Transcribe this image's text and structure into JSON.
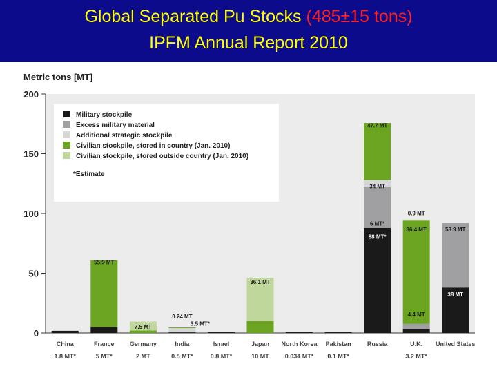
{
  "title": {
    "line1_part1": "Global Separated Pu Stocks ",
    "line1_part2": "(485±15 tons)",
    "line2": "IPFM Annual Report 2010",
    "color_main": "#ffff00",
    "color_highlight": "#ff2020",
    "banner_color": "#0b0b8c"
  },
  "chart_data": {
    "type": "bar",
    "stacked": true,
    "ylabel": "Metric tons [MT]",
    "ylim": [
      0,
      200
    ],
    "yticks": [
      0,
      50,
      100,
      150,
      200
    ],
    "grid": false,
    "legend_position": "top-left",
    "categories": [
      "China",
      "France",
      "Germany",
      "India",
      "Israel",
      "Japan",
      "North Korea",
      "Pakistan",
      "Russia",
      "U.K.",
      "United States"
    ],
    "category_sublabels": [
      "1.8 MT*",
      "5 MT*",
      "2 MT",
      "0.5 MT*",
      "0.8 MT*",
      "10 MT",
      "0.034 MT*",
      "0.1 MT*",
      "",
      "3.2 MT*",
      ""
    ],
    "series": [
      {
        "name": "Military stockpile",
        "color": "#1a1a1a",
        "values": [
          1.8,
          5,
          0,
          0.5,
          0.8,
          0,
          0.034,
          0.1,
          88,
          3.2,
          38
        ]
      },
      {
        "name": "Excess military material",
        "color": "#a0a0a2",
        "values": [
          0,
          0,
          0,
          0,
          0,
          0,
          0,
          0,
          34,
          4.4,
          53.9
        ]
      },
      {
        "name": "Additional strategic stockpile",
        "color": "#d7d7d7",
        "values": [
          0,
          0,
          0,
          3.5,
          0,
          0,
          0,
          0,
          6,
          0,
          0
        ]
      },
      {
        "name": "Civilian stockpile, stored in country (Jan. 2010)",
        "color": "#6aa420",
        "values": [
          0,
          55.9,
          2,
          0.24,
          0,
          10,
          0,
          0,
          47.7,
          86.4,
          0
        ]
      },
      {
        "name": "Civilian stockpile, stored outside country (Jan. 2010)",
        "color": "#bfd79a",
        "values": [
          0,
          0,
          7.5,
          0,
          0,
          36.1,
          0,
          0,
          0,
          0.9,
          0
        ]
      }
    ],
    "annotations": [
      {
        "text": "55.9 MT",
        "category": "France",
        "y": 57.5,
        "color": "#1a1a1a"
      },
      {
        "text": "7.5 MT",
        "category": "Germany",
        "y": 3.5,
        "color": "#1a1a1a"
      },
      {
        "text": "0.24 MT",
        "category": "India",
        "y": 12,
        "color": "#1a1a1a"
      },
      {
        "text": "3.5 MT*",
        "category": "India",
        "y": 6,
        "color": "#1a1a1a",
        "dx": 26
      },
      {
        "text": "36.1 MT",
        "category": "Japan",
        "y": 41,
        "color": "#1a1a1a"
      },
      {
        "text": "47.7 MT",
        "category": "Russia",
        "y": 172,
        "color": "#1a1a1a"
      },
      {
        "text": "34 MT",
        "category": "Russia",
        "y": 121,
        "color": "#1a1a1a"
      },
      {
        "text": "6 MT*",
        "category": "Russia",
        "y": 90,
        "color": "#1a1a1a"
      },
      {
        "text": "88 MT*",
        "category": "Russia",
        "y": 79,
        "color": "#ffffff"
      },
      {
        "text": "0.9 MT",
        "category": "U.K.",
        "y": 98.5,
        "color": "#1a1a1a"
      },
      {
        "text": "86.4 MT",
        "category": "U.K.",
        "y": 85,
        "color": "#1a1a1a"
      },
      {
        "text": "4.4 MT",
        "category": "U.K.",
        "y": 14,
        "color": "#1a1a1a"
      },
      {
        "text": "53.9 MT",
        "category": "United States",
        "y": 85,
        "color": "#1a1a1a"
      },
      {
        "text": "38 MT",
        "category": "United States",
        "y": 30.5,
        "color": "#ffffff"
      }
    ],
    "legend_note": "*Estimate"
  }
}
